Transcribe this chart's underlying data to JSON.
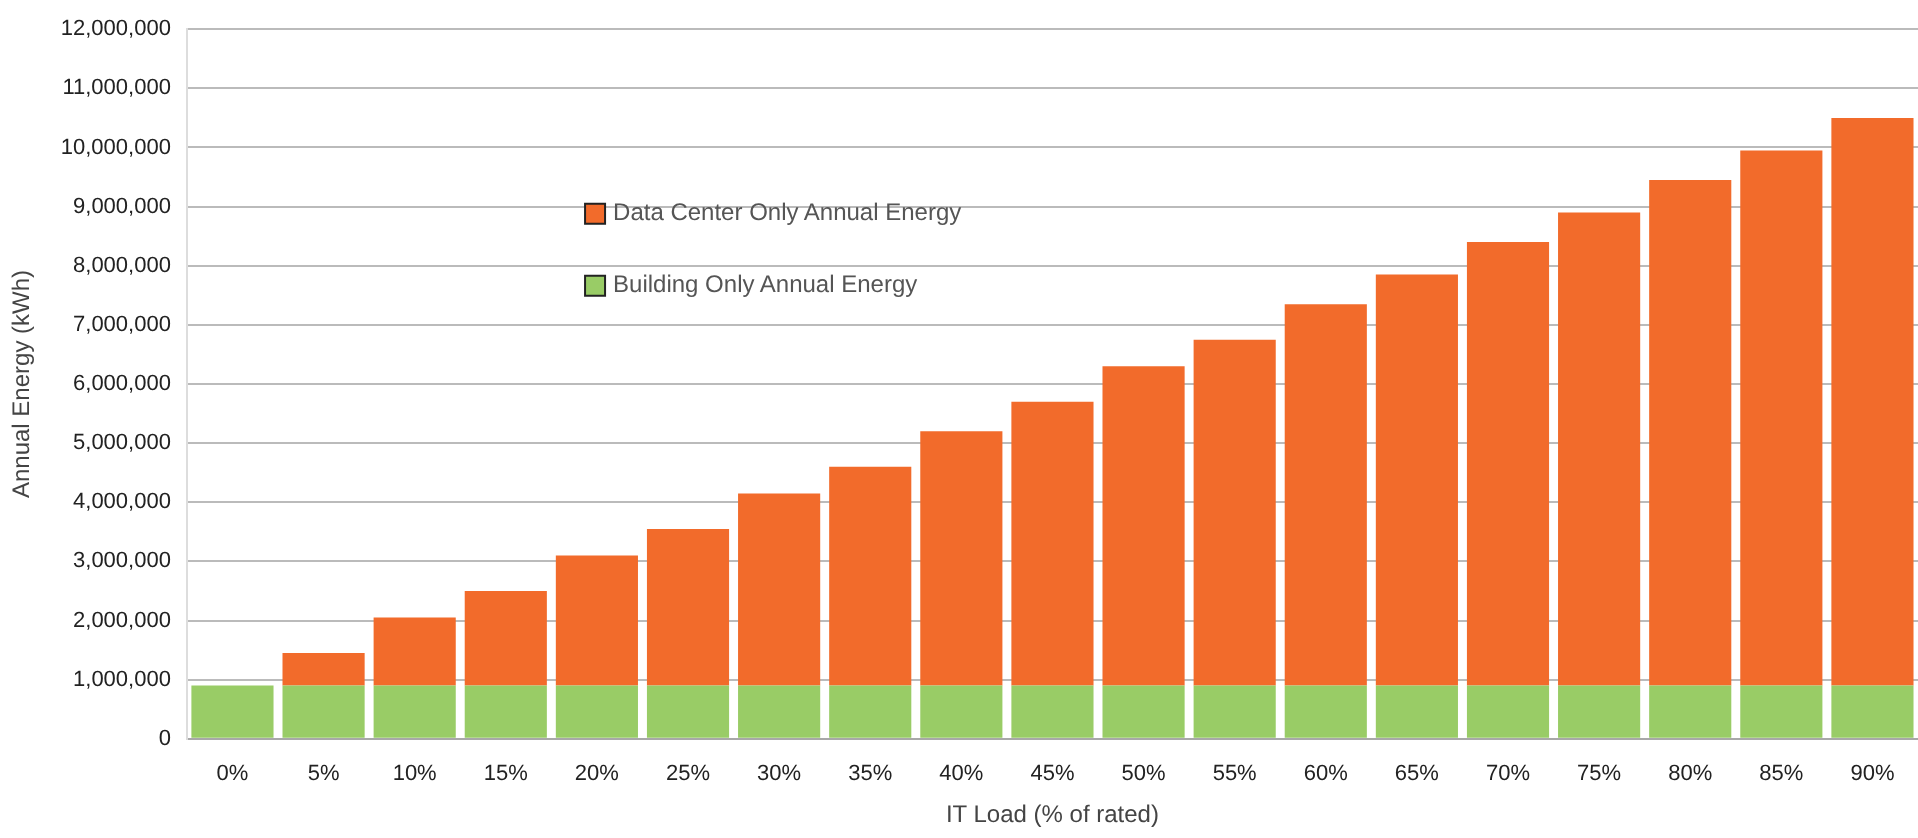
{
  "chart_data": {
    "type": "bar",
    "stacked": true,
    "xlabel": "IT Load (% of rated)",
    "ylabel": "Annual Energy (kWh)",
    "categories": [
      "0%",
      "5%",
      "10%",
      "15%",
      "20%",
      "25%",
      "30%",
      "35%",
      "40%",
      "45%",
      "50%",
      "55%",
      "60%",
      "65%",
      "70%",
      "75%",
      "80%",
      "85%",
      "90%"
    ],
    "series": [
      {
        "name": "Building Only Annual Energy",
        "color": "#99cc66",
        "values": [
          900000,
          900000,
          900000,
          900000,
          900000,
          900000,
          900000,
          900000,
          900000,
          900000,
          900000,
          900000,
          900000,
          900000,
          900000,
          900000,
          900000,
          900000,
          900000
        ]
      },
      {
        "name": "Data Center Only Annual Energy",
        "color": "#f26b2b",
        "values": [
          0,
          550000,
          1150000,
          1600000,
          2200000,
          2650000,
          3250000,
          3700000,
          4300000,
          4800000,
          5400000,
          5850000,
          6450000,
          6950000,
          7500000,
          8000000,
          8550000,
          9050000,
          9600000
        ]
      }
    ],
    "ylim": [
      0,
      12000000
    ],
    "yticks": [
      {
        "value": 0,
        "label": "0"
      },
      {
        "value": 1000000,
        "label": "1,000,000"
      },
      {
        "value": 2000000,
        "label": "2,000,000"
      },
      {
        "value": 3000000,
        "label": "3,000,000"
      },
      {
        "value": 4000000,
        "label": "4,000,000"
      },
      {
        "value": 5000000,
        "label": "5,000,000"
      },
      {
        "value": 6000000,
        "label": "6,000,000"
      },
      {
        "value": 7000000,
        "label": "7,000,000"
      },
      {
        "value": 8000000,
        "label": "8,000,000"
      },
      {
        "value": 9000000,
        "label": "9,000,000"
      },
      {
        "value": 10000000,
        "label": "10,000,000"
      },
      {
        "value": 11000000,
        "label": "11,000,000"
      },
      {
        "value": 12000000,
        "label": "12,000,000"
      }
    ],
    "grid": "y",
    "legend": "top left"
  }
}
